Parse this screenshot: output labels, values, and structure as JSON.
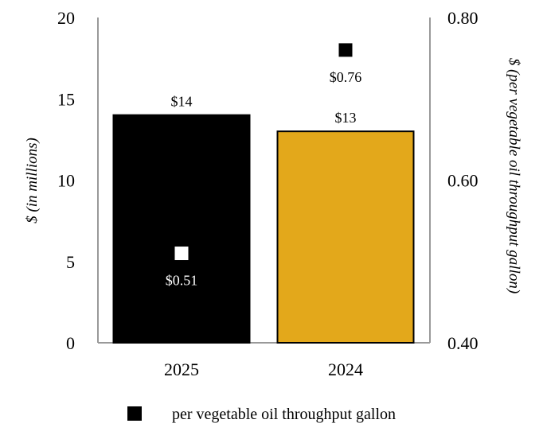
{
  "chart_data": {
    "type": "bar",
    "categories": [
      "2025",
      "2024"
    ],
    "series": [
      {
        "values": [
          14,
          13
        ],
        "value_labels": [
          "$14",
          "$13"
        ],
        "colors": [
          "#000000",
          "#E3A81B"
        ],
        "axis": "left"
      },
      {
        "name": "per vegetable oil throughput gallon",
        "marker": "square",
        "values": [
          0.51,
          0.76
        ],
        "value_labels": [
          "$0.51",
          "$0.76"
        ],
        "colors": [
          "#ffffff",
          "#000000"
        ],
        "axis": "right"
      }
    ],
    "ylabel": "$ (in millions)",
    "y2label": "$ (per vegetable oil throughput gallon)",
    "ylim": [
      0,
      20
    ],
    "y2lim": [
      0.4,
      0.8
    ],
    "yticks": [
      "0",
      "5",
      "10",
      "15",
      "20"
    ],
    "y2ticks": [
      "0.40",
      "0.60",
      "0.80"
    ],
    "legend": {
      "placement": "bottom",
      "label": "per vegetable oil throughput gallon",
      "swatch_color": "#000000"
    },
    "grid": false
  }
}
